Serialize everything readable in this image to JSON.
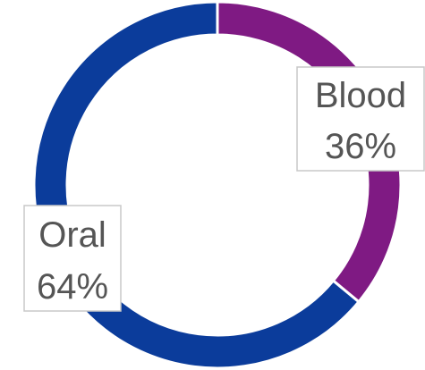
{
  "chart_data": {
    "type": "pie",
    "variant": "donut",
    "start": "12 o'clock",
    "direction": "clockwise",
    "slices": [
      {
        "label": "Blood",
        "value": 36,
        "value_label": "36%",
        "color": "#7f1a83"
      },
      {
        "label": "Oral",
        "value": 64,
        "value_label": "64%",
        "color": "#0b3c9b"
      }
    ],
    "legend": "none"
  }
}
